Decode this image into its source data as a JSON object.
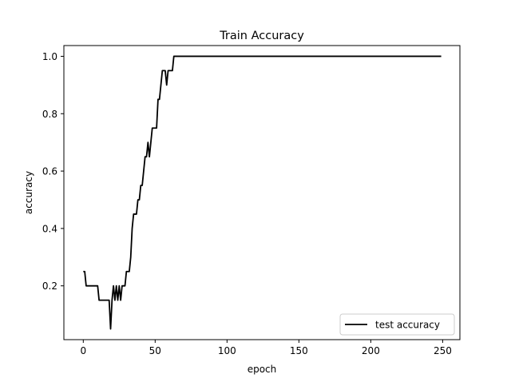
{
  "chart_data": {
    "type": "line",
    "title": "Train Accuracy",
    "xlabel": "epoch",
    "ylabel": "accuracy",
    "xlim": [
      -13.5,
      262
    ],
    "ylim": [
      0.0125,
      1.0375
    ],
    "xticks": [
      0,
      50,
      100,
      150,
      200,
      250
    ],
    "yticks": [
      0.2,
      0.4,
      0.6,
      0.8,
      1.0
    ],
    "xtick_labels": [
      "0",
      "50",
      "100",
      "150",
      "200",
      "250"
    ],
    "ytick_labels": [
      "0.2",
      "0.4",
      "0.6",
      "0.8",
      "1.0"
    ],
    "grid": false,
    "legend_position": "lower-right",
    "series": [
      {
        "name": "test accuracy",
        "color": "#000000",
        "x": [
          0,
          1,
          2,
          3,
          4,
          5,
          6,
          7,
          8,
          9,
          10,
          11,
          12,
          13,
          14,
          15,
          16,
          17,
          18,
          19,
          20,
          21,
          22,
          23,
          24,
          25,
          26,
          27,
          28,
          29,
          30,
          31,
          32,
          33,
          34,
          35,
          36,
          37,
          38,
          39,
          40,
          41,
          42,
          43,
          44,
          45,
          46,
          47,
          48,
          49,
          50,
          51,
          52,
          53,
          54,
          55,
          56,
          57,
          58,
          59,
          60,
          61,
          62,
          63,
          64,
          249
        ],
        "y": [
          0.25,
          0.25,
          0.2,
          0.2,
          0.2,
          0.2,
          0.2,
          0.2,
          0.2,
          0.2,
          0.2,
          0.15,
          0.15,
          0.15,
          0.15,
          0.15,
          0.15,
          0.15,
          0.15,
          0.05,
          0.15,
          0.2,
          0.15,
          0.2,
          0.15,
          0.2,
          0.15,
          0.2,
          0.2,
          0.2,
          0.25,
          0.25,
          0.25,
          0.3,
          0.4,
          0.45,
          0.45,
          0.45,
          0.5,
          0.5,
          0.55,
          0.55,
          0.6,
          0.65,
          0.65,
          0.7,
          0.65,
          0.7,
          0.75,
          0.75,
          0.75,
          0.75,
          0.85,
          0.85,
          0.9,
          0.95,
          0.95,
          0.95,
          0.9,
          0.95,
          0.95,
          0.95,
          0.95,
          1.0,
          1.0,
          1.0
        ]
      }
    ]
  }
}
